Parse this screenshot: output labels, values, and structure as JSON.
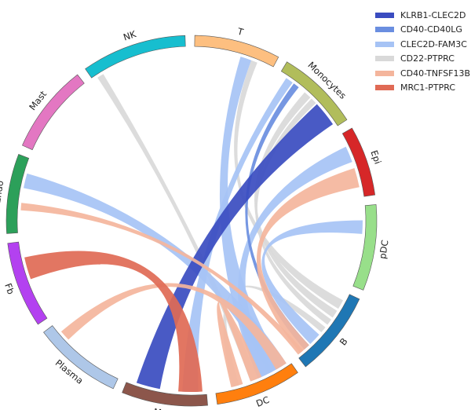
{
  "segments": [
    {
      "label": "T",
      "color": "#fdbf80"
    },
    {
      "label": "Monocytes",
      "color": "#b1bd5b"
    },
    {
      "label": "Epi",
      "color": "#d62728"
    },
    {
      "label": "pDC",
      "color": "#98df8a"
    },
    {
      "label": "B",
      "color": "#1f77b4"
    },
    {
      "label": "DC",
      "color": "#ff7f0e"
    },
    {
      "label": "Mac",
      "color": "#8c564b"
    },
    {
      "label": "Plasma",
      "color": "#aec7e8"
    },
    {
      "label": "Fb",
      "color": "#b341f0"
    },
    {
      "label": "Endo",
      "color": "#2ca05a"
    },
    {
      "label": "Mast",
      "color": "#e377c2"
    },
    {
      "label": "NK",
      "color": "#17becf"
    }
  ],
  "legend": [
    {
      "label": "KLRB1-CLEC2D",
      "color": "#3a4cc0"
    },
    {
      "label": "CD40-CD40LG",
      "color": "#6a8ee0"
    },
    {
      "label": "CLEC2D-FAM3C",
      "color": "#a6c3f5"
    },
    {
      "label": "CD22-PTPRC",
      "color": "#d9d9d9"
    },
    {
      "label": "CD40-TNFSF13B",
      "color": "#f4b59c"
    },
    {
      "label": "MRC1-PTPRC",
      "color": "#e06a55"
    }
  ]
}
